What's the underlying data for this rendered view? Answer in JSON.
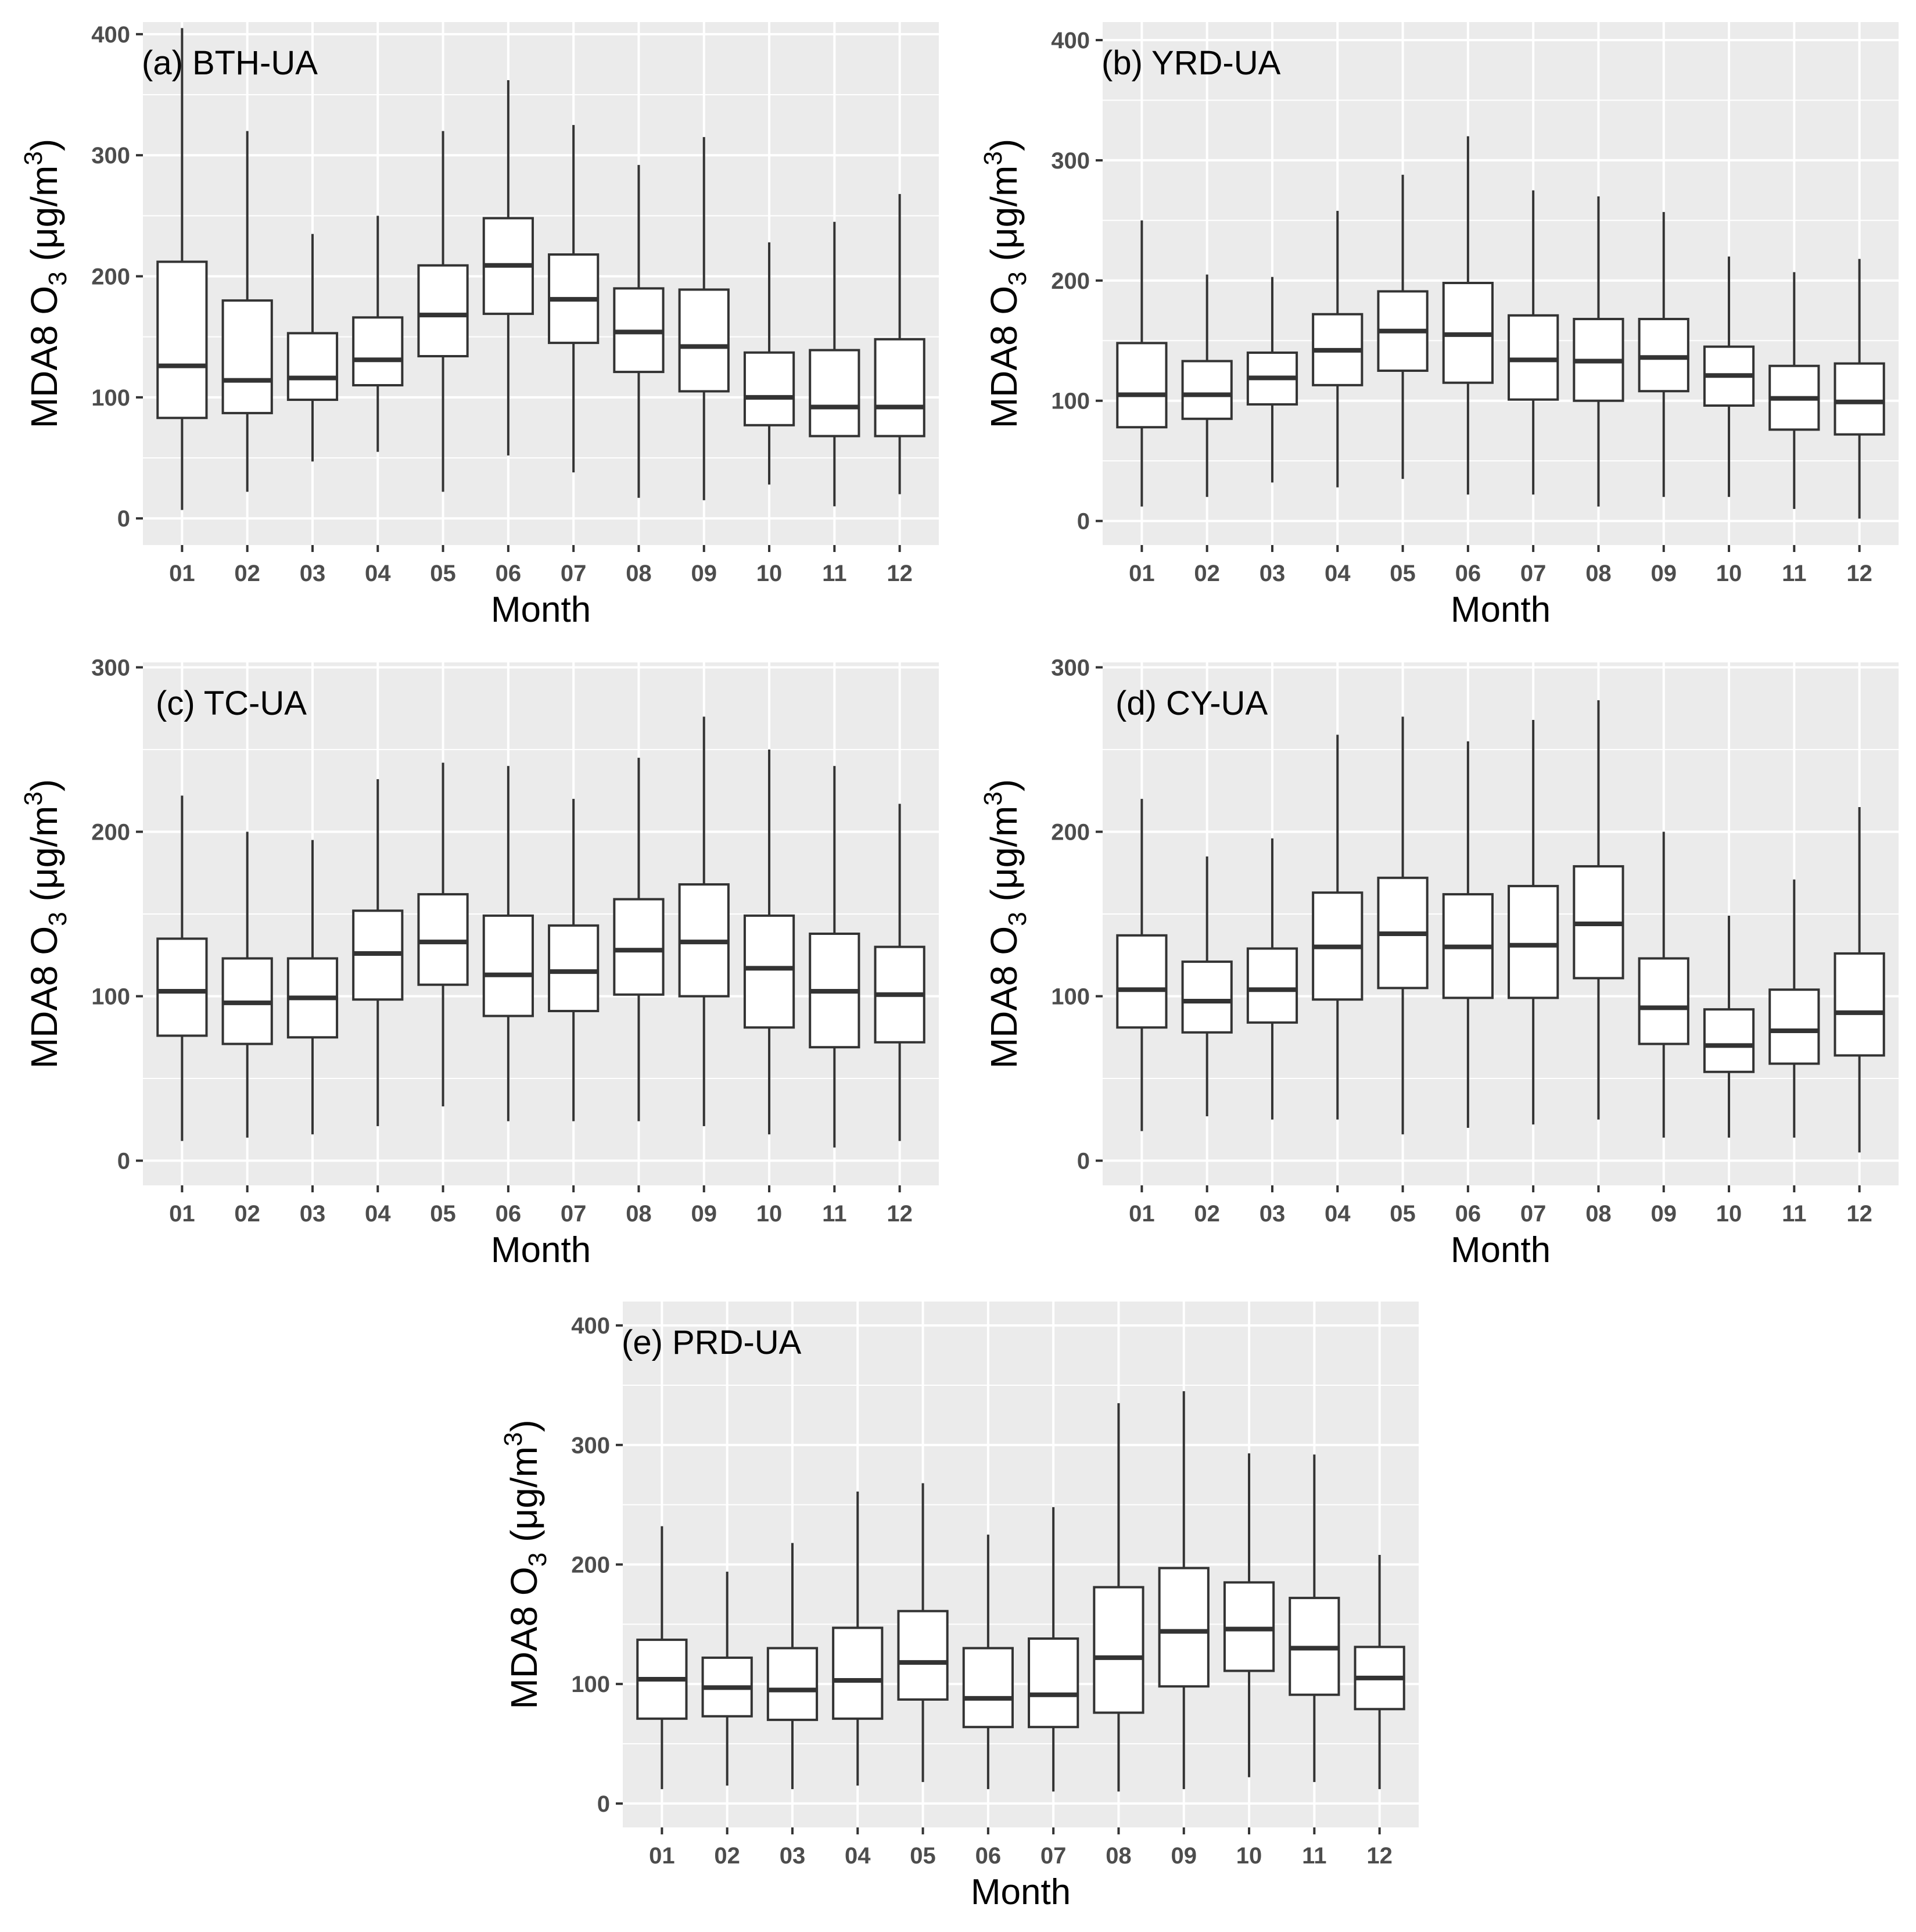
{
  "chart_data": [
    {
      "type": "boxplot",
      "title": "(a) BTH-UA",
      "xlabel": "Month",
      "ylabel": "MDA8 O3 (μg/m3)",
      "ylim": [
        -22,
        410
      ],
      "yticks": [
        0,
        100,
        200,
        300,
        400
      ],
      "categories": [
        "01",
        "02",
        "03",
        "04",
        "05",
        "06",
        "07",
        "08",
        "09",
        "10",
        "11",
        "12"
      ],
      "min": [
        7,
        22,
        47,
        55,
        22,
        52,
        38,
        17,
        15,
        28,
        10,
        20
      ],
      "q1": [
        83,
        87,
        98,
        110,
        134,
        169,
        145,
        121,
        105,
        77,
        68,
        68
      ],
      "median": [
        126,
        114,
        116,
        131,
        168,
        209,
        181,
        154,
        142,
        100,
        92,
        92
      ],
      "q3": [
        212,
        180,
        153,
        166,
        209,
        248,
        218,
        190,
        189,
        137,
        139,
        148
      ],
      "max": [
        405,
        320,
        235,
        250,
        320,
        362,
        325,
        292,
        315,
        228,
        245,
        268
      ]
    },
    {
      "type": "boxplot",
      "title": "(b) YRD-UA",
      "xlabel": "Month",
      "ylabel": "MDA8 O3 (μg/m3)",
      "ylim": [
        -20,
        415
      ],
      "yticks": [
        0,
        100,
        200,
        300,
        400
      ],
      "categories": [
        "01",
        "02",
        "03",
        "04",
        "05",
        "06",
        "07",
        "08",
        "09",
        "10",
        "11",
        "12"
      ],
      "min": [
        12,
        20,
        32,
        28,
        35,
        22,
        22,
        12,
        20,
        20,
        10,
        2
      ],
      "q1": [
        78,
        85,
        97,
        113,
        125,
        115,
        101,
        100,
        108,
        96,
        76,
        72
      ],
      "median": [
        105,
        105,
        119,
        142,
        158,
        155,
        134,
        133,
        136,
        121,
        102,
        99
      ],
      "q3": [
        148,
        133,
        140,
        172,
        191,
        198,
        171,
        168,
        168,
        145,
        129,
        131
      ],
      "max": [
        250,
        205,
        203,
        258,
        288,
        320,
        275,
        270,
        257,
        220,
        207,
        218
      ]
    },
    {
      "type": "boxplot",
      "title": "(c) TC-UA",
      "xlabel": "Month",
      "ylabel": "MDA8 O3 (μg/m3)",
      "ylim": [
        -15,
        303
      ],
      "yticks": [
        0,
        100,
        200,
        300
      ],
      "categories": [
        "01",
        "02",
        "03",
        "04",
        "05",
        "06",
        "07",
        "08",
        "09",
        "10",
        "11",
        "12"
      ],
      "min": [
        12,
        14,
        16,
        21,
        33,
        24,
        24,
        24,
        21,
        16,
        8,
        12
      ],
      "q1": [
        76,
        71,
        75,
        98,
        107,
        88,
        91,
        101,
        100,
        81,
        69,
        72
      ],
      "median": [
        103,
        96,
        99,
        126,
        133,
        113,
        115,
        128,
        133,
        117,
        103,
        101
      ],
      "q3": [
        135,
        123,
        123,
        152,
        162,
        149,
        143,
        159,
        168,
        149,
        138,
        130
      ],
      "max": [
        222,
        200,
        195,
        232,
        242,
        240,
        220,
        245,
        270,
        250,
        240,
        217
      ]
    },
    {
      "type": "boxplot",
      "title": "(d) CY-UA",
      "xlabel": "Month",
      "ylabel": "MDA8 O3 (μg/m3)",
      "ylim": [
        -15,
        303
      ],
      "yticks": [
        0,
        100,
        200,
        300
      ],
      "categories": [
        "01",
        "02",
        "03",
        "04",
        "05",
        "06",
        "07",
        "08",
        "09",
        "10",
        "11",
        "12"
      ],
      "min": [
        18,
        27,
        25,
        25,
        16,
        20,
        22,
        25,
        14,
        14,
        14,
        5
      ],
      "q1": [
        81,
        78,
        84,
        98,
        105,
        99,
        99,
        111,
        71,
        54,
        59,
        64
      ],
      "median": [
        104,
        97,
        104,
        130,
        138,
        130,
        131,
        144,
        93,
        70,
        79,
        90
      ],
      "q3": [
        137,
        121,
        129,
        163,
        172,
        162,
        167,
        179,
        123,
        92,
        104,
        126
      ],
      "max": [
        220,
        185,
        196,
        259,
        270,
        255,
        268,
        280,
        200,
        149,
        171,
        215
      ]
    },
    {
      "type": "boxplot",
      "title": "(e) PRD-UA",
      "xlabel": "Month",
      "ylabel": "MDA8 O3 (μg/m3)",
      "ylim": [
        -20,
        420
      ],
      "yticks": [
        0,
        100,
        200,
        300,
        400
      ],
      "categories": [
        "01",
        "02",
        "03",
        "04",
        "05",
        "06",
        "07",
        "08",
        "09",
        "10",
        "11",
        "12"
      ],
      "min": [
        12,
        15,
        12,
        15,
        18,
        12,
        10,
        10,
        12,
        22,
        18,
        12
      ],
      "q1": [
        71,
        73,
        70,
        71,
        87,
        64,
        64,
        76,
        98,
        111,
        91,
        79
      ],
      "median": [
        104,
        97,
        95,
        103,
        118,
        88,
        91,
        122,
        144,
        146,
        130,
        105
      ],
      "q3": [
        137,
        122,
        130,
        147,
        161,
        130,
        138,
        181,
        197,
        185,
        172,
        131
      ],
      "max": [
        232,
        194,
        218,
        261,
        268,
        225,
        248,
        335,
        345,
        293,
        292,
        208
      ]
    }
  ]
}
